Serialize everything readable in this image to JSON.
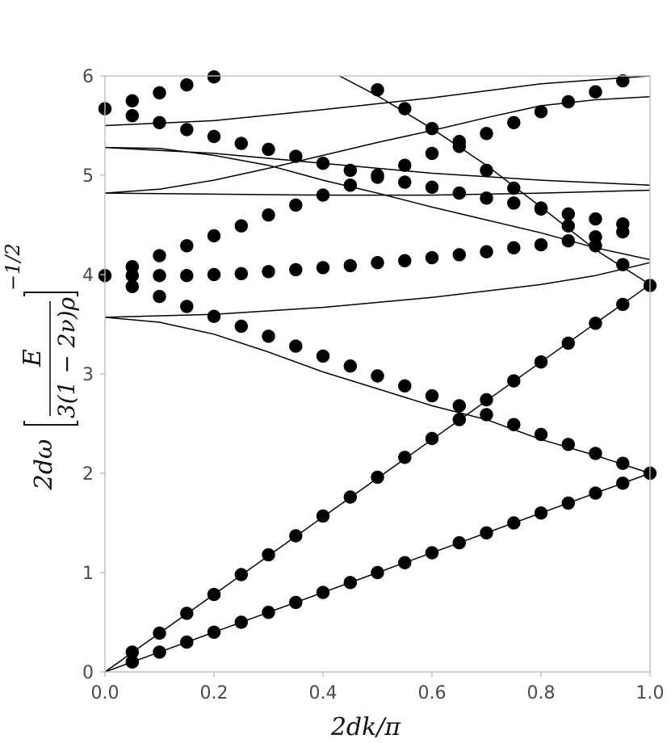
{
  "chart_data": {
    "type": "scatter",
    "xlabel": "2dk/π",
    "ylabel_main": "2dω",
    "ylabel_numerator": "E",
    "ylabel_denominator": "3(1 − 2ν)ρ",
    "ylabel_exponent": "−1/2",
    "xlim": [
      0,
      1
    ],
    "ylim": [
      0,
      6
    ],
    "x_ticks": [
      0.0,
      0.2,
      0.4,
      0.6,
      0.8,
      1.0
    ],
    "x_tick_labels": [
      "0.0",
      "0.2",
      "0.4",
      "0.6",
      "0.8",
      "1.0"
    ],
    "y_ticks": [
      0,
      1,
      2,
      3,
      4,
      5,
      6
    ],
    "y_tick_labels": [
      "0",
      "1",
      "2",
      "3",
      "4",
      "5",
      "6"
    ],
    "grid": false,
    "legend": false,
    "curves": [
      {
        "x": [
          0,
          0.1,
          0.2,
          0.3,
          0.4,
          0.5,
          0.6,
          0.7,
          0.8,
          0.9,
          1.0
        ],
        "y": [
          0,
          0.2,
          0.4,
          0.6,
          0.8,
          1.0,
          1.2,
          1.4,
          1.6,
          1.8,
          2.0
        ]
      },
      {
        "x": [
          0,
          0.1,
          0.2,
          0.3,
          0.4,
          0.5,
          0.6,
          0.7,
          0.8,
          0.9,
          1.0
        ],
        "y": [
          0,
          0.39,
          0.78,
          1.17,
          1.56,
          1.95,
          2.34,
          2.73,
          3.12,
          3.51,
          3.9
        ]
      },
      {
        "x": [
          0,
          0.1,
          0.2,
          0.3,
          0.4,
          0.5,
          0.6,
          0.7,
          0.8,
          0.9,
          1.0
        ],
        "y": [
          3.57,
          3.52,
          3.4,
          3.22,
          3.02,
          2.85,
          2.68,
          2.54,
          2.34,
          2.18,
          2.0
        ]
      },
      {
        "x": [
          0,
          0.2,
          0.4,
          0.6,
          0.8,
          0.9,
          1.0
        ],
        "y": [
          3.57,
          3.6,
          3.67,
          3.77,
          3.9,
          3.99,
          4.12
        ]
      },
      {
        "x": [
          0,
          0.1,
          0.2,
          0.3,
          0.4,
          0.5,
          0.6,
          0.7,
          0.8,
          0.9,
          1.0
        ],
        "y": [
          5.28,
          5.27,
          5.2,
          5.1,
          4.95,
          4.82,
          4.68,
          4.55,
          4.42,
          4.27,
          4.15
        ]
      },
      {
        "x": [
          0,
          0.2,
          0.4,
          0.6,
          0.8,
          1.0
        ],
        "y": [
          4.82,
          4.81,
          4.8,
          4.8,
          4.82,
          4.85
        ]
      },
      {
        "x": [
          0,
          0.2,
          0.4,
          0.6,
          0.8,
          1.0
        ],
        "y": [
          5.28,
          5.22,
          5.12,
          5.02,
          4.95,
          4.9
        ]
      },
      {
        "x": [
          0,
          0.1,
          0.2,
          0.3,
          0.4,
          0.5,
          0.6,
          0.7,
          0.8,
          0.9,
          1.0
        ],
        "y": [
          4.82,
          4.86,
          4.95,
          5.07,
          5.2,
          5.33,
          5.45,
          5.58,
          5.7,
          5.76,
          5.79
        ]
      },
      {
        "x": [
          0,
          0.2,
          0.4,
          0.6,
          0.8,
          1.0
        ],
        "y": [
          5.5,
          5.55,
          5.66,
          5.78,
          5.92,
          6.0
        ]
      },
      {
        "x": [
          0.43,
          0.5,
          0.6,
          0.7,
          0.8,
          0.9,
          1.0
        ],
        "y": [
          6.0,
          5.8,
          5.47,
          5.1,
          4.68,
          4.25,
          3.9
        ]
      }
    ],
    "points": [
      {
        "x": [
          0.05,
          0.1,
          0.15,
          0.2,
          0.25,
          0.3,
          0.35,
          0.4,
          0.45,
          0.5,
          0.55,
          0.6,
          0.65,
          0.7,
          0.75,
          0.8,
          0.85,
          0.9,
          0.95,
          1.0
        ],
        "y": [
          0.1,
          0.2,
          0.3,
          0.4,
          0.5,
          0.6,
          0.7,
          0.8,
          0.9,
          1.0,
          1.1,
          1.2,
          1.3,
          1.4,
          1.5,
          1.6,
          1.7,
          1.8,
          1.9,
          2.0
        ]
      },
      {
        "x": [
          0.05,
          0.1,
          0.15,
          0.2,
          0.25,
          0.3,
          0.35,
          0.4,
          0.45,
          0.5,
          0.55,
          0.6,
          0.65,
          0.7,
          0.75,
          0.8,
          0.85,
          0.9,
          0.95,
          1.0
        ],
        "y": [
          0.2,
          0.39,
          0.59,
          0.78,
          0.98,
          1.18,
          1.37,
          1.57,
          1.76,
          1.96,
          2.16,
          2.35,
          2.54,
          2.74,
          2.93,
          3.12,
          3.31,
          3.51,
          3.7,
          3.89
        ]
      },
      {
        "x": [
          0.05,
          0.1,
          0.15,
          0.2,
          0.25,
          0.3,
          0.35,
          0.4,
          0.45,
          0.5,
          0.55,
          0.6,
          0.65,
          0.7,
          0.75,
          0.8,
          0.85,
          0.9,
          0.95
        ],
        "y": [
          3.88,
          3.78,
          3.68,
          3.58,
          3.48,
          3.38,
          3.28,
          3.18,
          3.08,
          2.98,
          2.88,
          2.78,
          2.68,
          2.59,
          2.49,
          2.39,
          2.29,
          2.2,
          2.1
        ]
      },
      {
        "x": [
          0,
          0.05,
          0.1,
          0.15,
          0.2,
          0.25,
          0.3,
          0.35,
          0.4,
          0.45,
          0.5,
          0.55,
          0.6,
          0.65,
          0.7,
          0.75,
          0.8,
          0.85,
          0.9,
          0.95
        ],
        "y": [
          3.99,
          3.99,
          3.99,
          3.99,
          4.0,
          4.01,
          4.03,
          4.05,
          4.07,
          4.09,
          4.12,
          4.14,
          4.17,
          4.2,
          4.23,
          4.27,
          4.3,
          4.34,
          4.38,
          4.43
        ]
      },
      {
        "x": [
          0.05,
          0.1,
          0.15,
          0.2,
          0.25,
          0.3,
          0.35,
          0.4,
          0.45,
          0.5,
          0.55,
          0.6,
          0.65,
          0.7,
          0.75,
          0.8,
          0.85,
          0.9,
          0.95
        ],
        "y": [
          4.08,
          4.19,
          4.29,
          4.39,
          4.49,
          4.6,
          4.7,
          4.8,
          4.9,
          5.0,
          5.1,
          5.22,
          5.34,
          5.05,
          4.87,
          4.67,
          4.49,
          4.29,
          4.1
        ]
      },
      {
        "x": [
          0,
          0.05,
          0.1,
          0.15,
          0.2
        ],
        "y": [
          5.67,
          5.75,
          5.83,
          5.91,
          5.99
        ]
      },
      {
        "x": [
          0.05,
          0.1,
          0.15,
          0.2,
          0.25,
          0.3,
          0.35,
          0.4,
          0.45,
          0.5,
          0.55,
          0.6,
          0.65,
          0.7,
          0.75,
          0.8,
          0.85,
          0.9,
          0.95
        ],
        "y": [
          5.6,
          5.53,
          5.46,
          5.39,
          5.32,
          5.26,
          5.19,
          5.12,
          5.05,
          4.98,
          4.93,
          4.88,
          4.82,
          4.77,
          4.72,
          4.66,
          4.61,
          4.56,
          4.51
        ]
      },
      {
        "x": [
          0.5,
          0.55,
          0.6,
          0.65,
          0.7,
          0.75,
          0.8,
          0.85,
          0.9,
          0.95
        ],
        "y": [
          5.86,
          5.67,
          5.47,
          5.29,
          5.42,
          5.53,
          5.64,
          5.74,
          5.84,
          5.95
        ]
      }
    ]
  }
}
